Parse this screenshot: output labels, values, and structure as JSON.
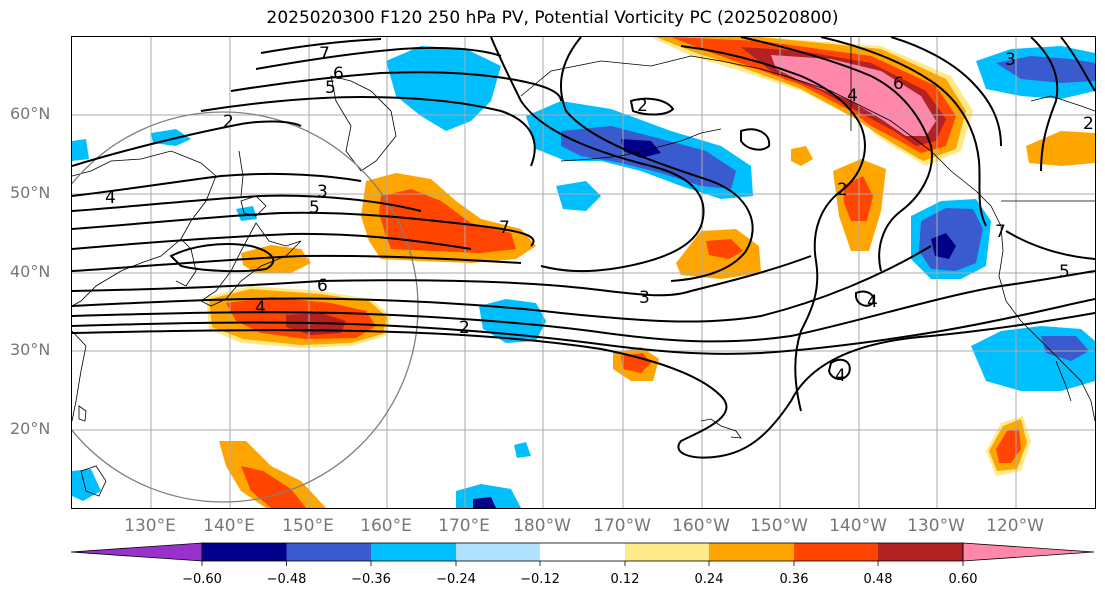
{
  "title": "2025020300 F120 250 hPa PV, Potential Vorticity PC (2025020800)",
  "lat_labels": [
    "60°N",
    "50°N",
    "40°N",
    "30°N",
    "20°N"
  ],
  "lon_labels": [
    "130°E",
    "140°E",
    "150°E",
    "160°E",
    "170°E",
    "180°W",
    "170°W",
    "160°W",
    "150°W",
    "140°W",
    "130°W",
    "120°W"
  ],
  "colorbar": {
    "ticks": [
      "−0.60",
      "−0.48",
      "−0.36",
      "−0.24",
      "−0.12",
      "0.12",
      "0.24",
      "0.36",
      "0.48",
      "0.60"
    ],
    "colors": [
      "#9932cc",
      "#00008b",
      "#3a5bcd",
      "#00bfff",
      "#b0e2ff",
      "#ffffff",
      "#ffea8a",
      "#ffa500",
      "#ff4500",
      "#b22222",
      "#ff88aa"
    ]
  },
  "contour_labels": [
    "7",
    "6",
    "5",
    "2",
    "4",
    "3",
    "5",
    "7",
    "6",
    "4",
    "3",
    "2",
    "2",
    "6",
    "4",
    "5",
    "7",
    "4",
    "2",
    "3",
    "2",
    "4"
  ],
  "colors": {
    "contour": "#000000",
    "grid": "#aaaaaa",
    "coast": "#000000",
    "circle": "#808080"
  }
}
